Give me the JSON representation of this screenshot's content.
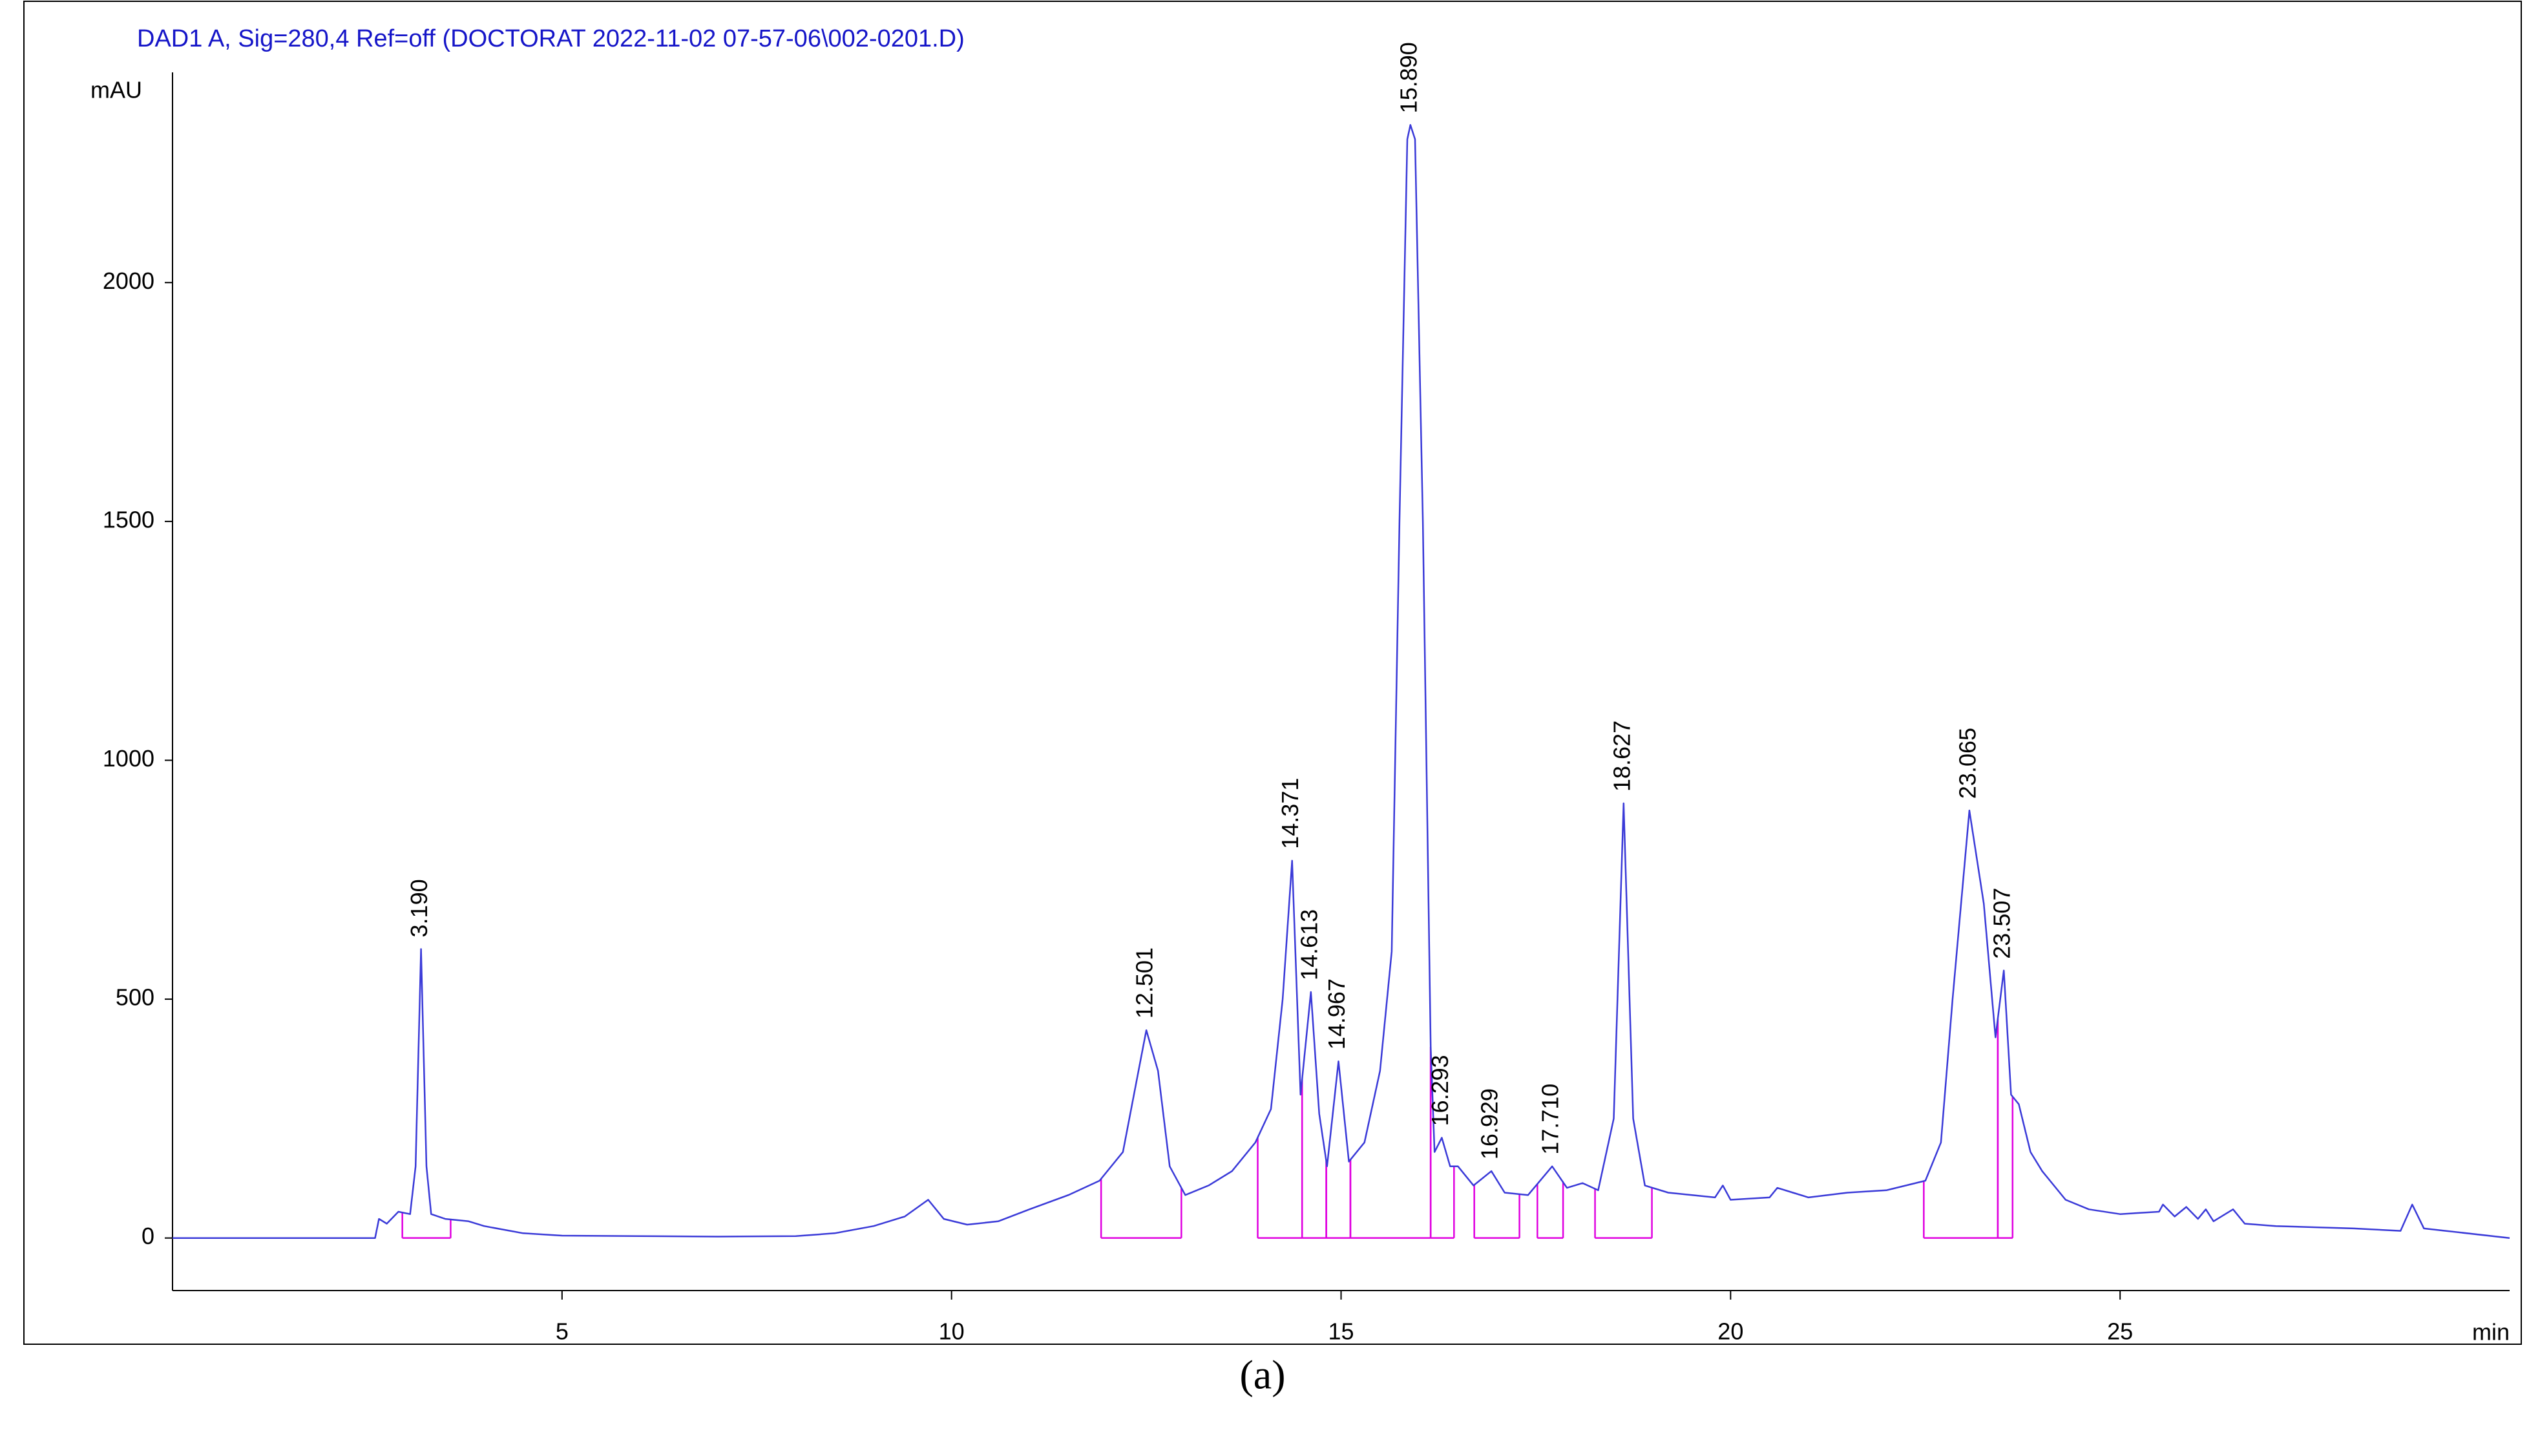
{
  "chart_data": {
    "type": "line",
    "title": "DAD1 A, Sig=280,4 Ref=off (DOCTORAT 2022-11-02 07-57-06\\002-0201.D)",
    "y_label": "mAU",
    "x_label": "min",
    "caption": "(a)",
    "xlim": [
      0,
      30
    ],
    "ylim": [
      -110,
      2440
    ],
    "xticks": [
      5,
      10,
      15,
      20,
      25
    ],
    "yticks": [
      0,
      500,
      1000,
      1500,
      2000
    ],
    "grid": false,
    "x": [
      0,
      2.6,
      2.65,
      2.75,
      2.9,
      3.05,
      3.12,
      3.19,
      3.26,
      3.32,
      3.5,
      3.8,
      4.0,
      4.5,
      5,
      6,
      7,
      8,
      8.5,
      9.0,
      9.4,
      9.7,
      9.9,
      10.2,
      10.6,
      11.0,
      11.5,
      11.9,
      12.2,
      12.4,
      12.5,
      12.65,
      12.8,
      13.0,
      13.3,
      13.6,
      13.9,
      14.1,
      14.25,
      14.371,
      14.48,
      14.613,
      14.72,
      14.82,
      14.967,
      15.1,
      15.3,
      15.5,
      15.65,
      15.75,
      15.85,
      15.89,
      15.95,
      16.05,
      16.15,
      16.2,
      16.293,
      16.4,
      16.5,
      16.7,
      16.929,
      17.1,
      17.4,
      17.71,
      17.9,
      18.1,
      18.3,
      18.5,
      18.627,
      18.75,
      18.9,
      19.2,
      19.8,
      19.9,
      20.0,
      20.5,
      20.6,
      20.8,
      21.0,
      21.5,
      22.0,
      22.5,
      22.7,
      22.85,
      23.065,
      23.25,
      23.4,
      23.507,
      23.6,
      23.7,
      23.85,
      24.0,
      24.3,
      24.6,
      25.0,
      25.5,
      25.55,
      25.7,
      25.85,
      26.0,
      26.1,
      26.2,
      26.45,
      26.6,
      27,
      28,
      28.6,
      28.75,
      28.9,
      30
    ],
    "series": [
      {
        "color": "#3a3ad8",
        "values": [
          0,
          0,
          40,
          30,
          55,
          50,
          150,
          605,
          150,
          50,
          40,
          35,
          25,
          10,
          5,
          4,
          3,
          4,
          10,
          25,
          45,
          80,
          40,
          28,
          35,
          60,
          90,
          120,
          180,
          350,
          435,
          350,
          150,
          90,
          110,
          140,
          200,
          270,
          500,
          790,
          300,
          515,
          260,
          150,
          370,
          160,
          200,
          350,
          600,
          1500,
          2300,
          2330,
          2300,
          1500,
          400,
          180,
          210,
          150,
          150,
          110,
          140,
          95,
          90,
          150,
          105,
          115,
          100,
          250,
          910,
          250,
          110,
          95,
          85,
          110,
          80,
          85,
          105,
          95,
          85,
          95,
          100,
          120,
          200,
          500,
          895,
          700,
          420,
          560,
          300,
          280,
          180,
          140,
          80,
          60,
          50,
          55,
          70,
          45,
          65,
          40,
          60,
          35,
          60,
          30,
          25,
          20,
          15,
          70,
          20,
          0
        ]
      }
    ],
    "peak_labels": [
      "3.190",
      "12.501",
      "14.371",
      "14.613",
      "14.967",
      "15.890",
      "16.293",
      "16.929",
      "17.710",
      "18.627",
      "23.065",
      "23.507"
    ],
    "peak_x": [
      3.19,
      12.501,
      14.371,
      14.613,
      14.967,
      15.89,
      16.293,
      16.929,
      17.71,
      18.627,
      23.065,
      23.507
    ],
    "peak_y": [
      605,
      435,
      790,
      515,
      370,
      2330,
      210,
      140,
      150,
      910,
      895,
      560
    ],
    "integration_color": "#e000e0",
    "integration_segments": [
      [
        2.95,
        3.57
      ],
      [
        11.92,
        12.95
      ],
      [
        13.93,
        14.5
      ],
      [
        14.5,
        14.81
      ],
      [
        14.81,
        15.12
      ],
      [
        15.12,
        16.15
      ],
      [
        16.15,
        16.45
      ],
      [
        16.71,
        17.29
      ],
      [
        17.52,
        17.85
      ],
      [
        18.26,
        18.99
      ],
      [
        22.48,
        23.43
      ],
      [
        23.43,
        23.62
      ]
    ]
  }
}
